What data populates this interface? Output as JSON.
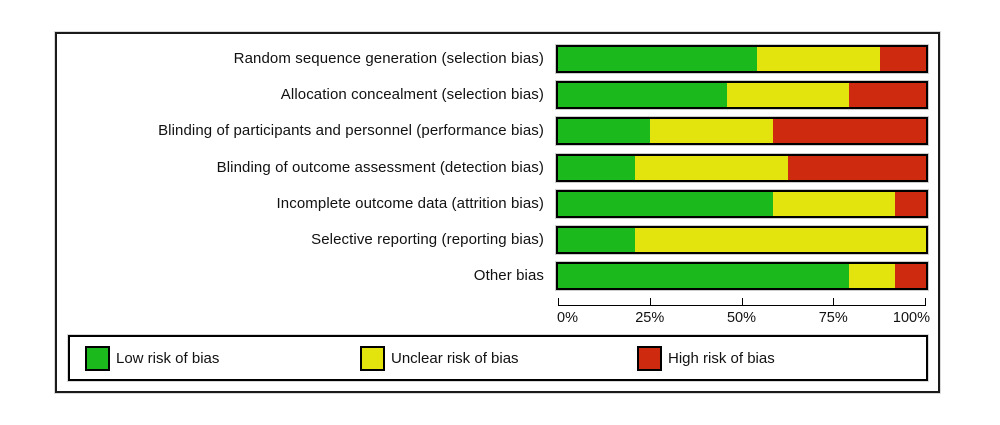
{
  "chart_data": {
    "type": "bar",
    "subtype": "horizontal-stacked",
    "title": "",
    "xlabel": "",
    "ylabel": "",
    "xlim": [
      0,
      100
    ],
    "grid": false,
    "legend_position": "bottom",
    "x_ticks": [
      "0%",
      "25%",
      "50%",
      "75%",
      "100%"
    ],
    "categories": [
      "Random sequence generation (selection bias)",
      "Allocation concealment (selection bias)",
      "Blinding of participants and personnel (performance bias)",
      "Blinding of outcome assessment (detection bias)",
      "Incomplete outcome data (attrition bias)",
      "Selective reporting (reporting bias)",
      "Other bias"
    ],
    "series": [
      {
        "name": "Low risk of bias",
        "color": "#1bb91b",
        "values": [
          54.2,
          45.8,
          25.0,
          20.8,
          58.3,
          20.8,
          79.2
        ]
      },
      {
        "name": "Unclear risk of bias",
        "color": "#e3e30e",
        "values": [
          33.3,
          33.4,
          33.3,
          41.7,
          33.4,
          79.2,
          12.5
        ]
      },
      {
        "name": "High risk of bias",
        "color": "#cd2a10",
        "values": [
          12.5,
          20.8,
          41.7,
          37.5,
          8.3,
          0,
          8.3
        ]
      }
    ]
  }
}
